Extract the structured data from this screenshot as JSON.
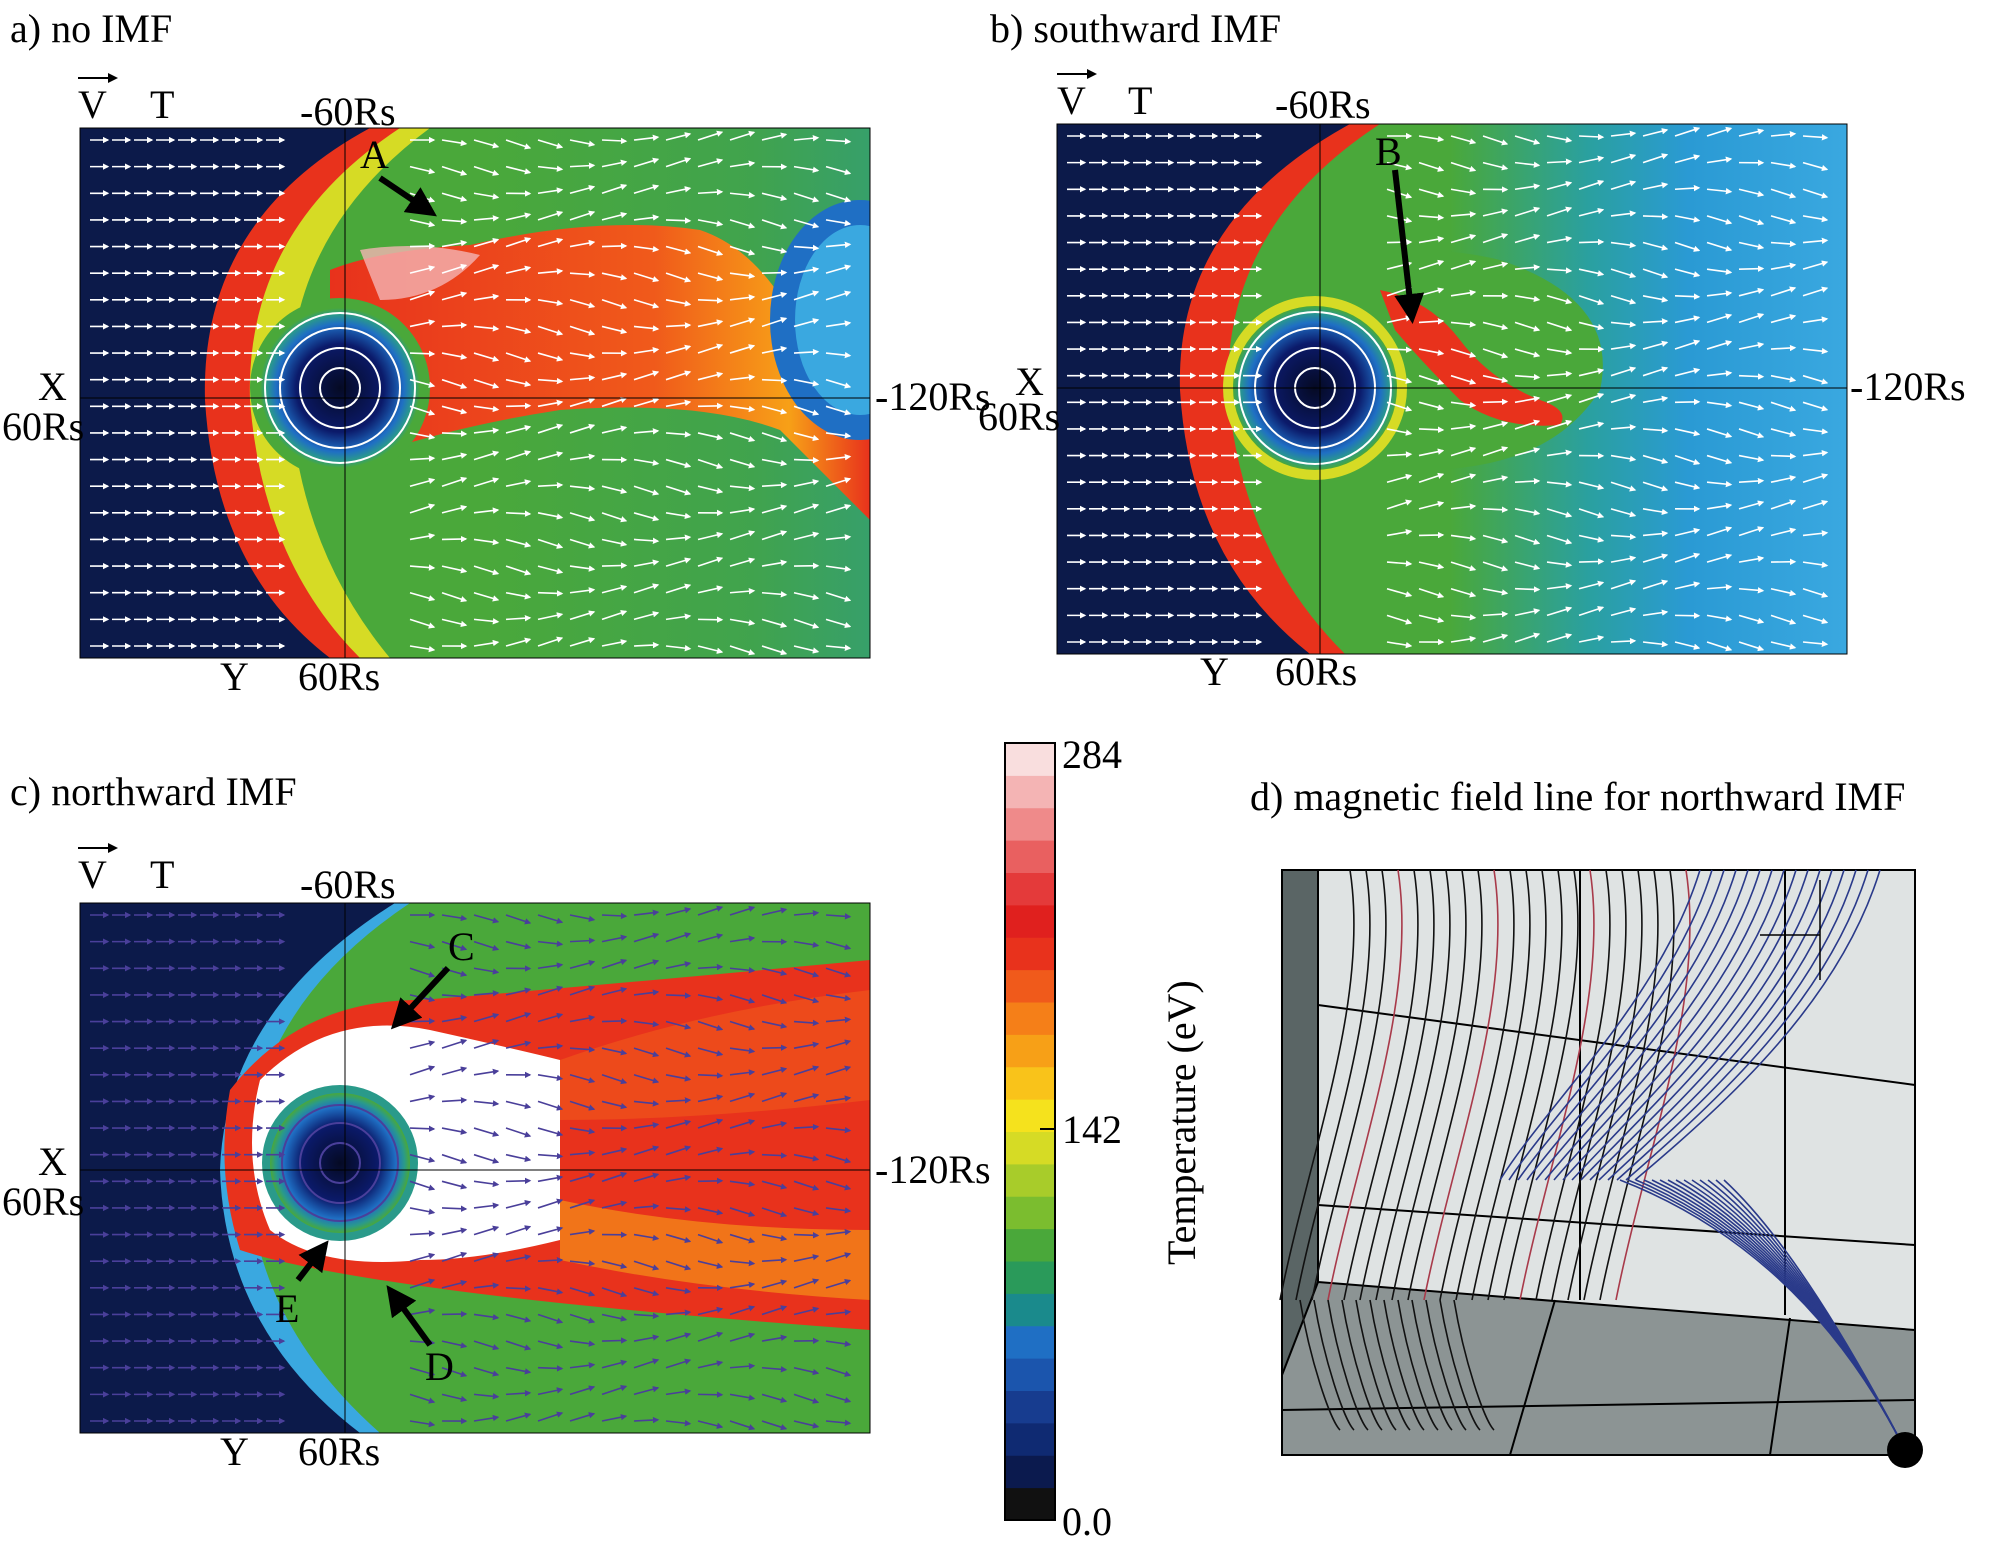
{
  "panels": {
    "a": {
      "title": "a) no IMF",
      "velocity": "V",
      "temp": "T",
      "top_tick": "-60Rs",
      "right_tick": "-120Rs",
      "x_axis": "X",
      "left_tick": "60Rs",
      "y_axis": "Y",
      "bottom_tick": "60Rs",
      "marker": "A"
    },
    "b": {
      "title": "b) southward IMF",
      "velocity": "V",
      "temp": "T",
      "top_tick": "-60Rs",
      "right_tick": "-120Rs",
      "x_axis": "X",
      "left_tick": "60Rs",
      "y_axis": "Y",
      "bottom_tick": "60Rs",
      "marker": "B"
    },
    "c": {
      "title": "c) northward IMF",
      "velocity": "V",
      "temp": "T",
      "top_tick": "-60Rs",
      "right_tick": "-120Rs",
      "x_axis": "X",
      "left_tick": "60Rs",
      "y_axis": "Y",
      "bottom_tick": "60Rs",
      "markers": [
        "C",
        "D",
        "E"
      ]
    },
    "d": {
      "title": "d) magnetic field line for northward IMF"
    }
  },
  "colorbar": {
    "label": "Temperature (eV)",
    "max_label": "284",
    "mid_label": "142",
    "min_label": "0.0",
    "range": [
      0,
      284
    ],
    "colors": [
      "#111111",
      "#0b1a4e",
      "#0f2a72",
      "#173c8f",
      "#1b55ad",
      "#1f6fc4",
      "#1a8a8c",
      "#2a9a5a",
      "#4aa83a",
      "#7bbd2f",
      "#a8cc2a",
      "#d6db25",
      "#f5e21d",
      "#f9c31a",
      "#f7a017",
      "#f57f18",
      "#f05a1b",
      "#e8321c",
      "#e0201e",
      "#e43a3a",
      "#e96060",
      "#ef8a8a",
      "#f4b4b4",
      "#f9dede"
    ]
  },
  "colors": {
    "background": "#0c1a4a",
    "arrows_white": "#ffffff",
    "arrows_purple": "#4a3f9a"
  }
}
